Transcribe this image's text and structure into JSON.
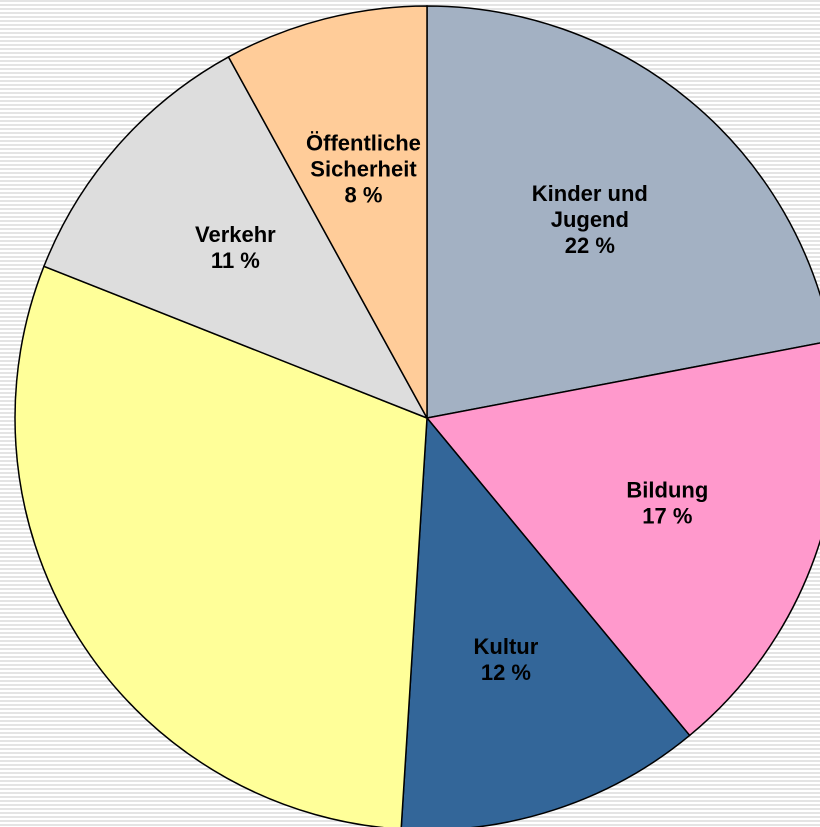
{
  "chart_data": {
    "type": "pie",
    "categories": [
      "Kinder und Jugend",
      "Bildung",
      "Kultur",
      null,
      "Verkehr",
      "Öffentliche Sicherheit"
    ],
    "values": [
      22,
      17,
      12,
      30,
      11,
      8
    ],
    "value_labels": [
      "22 %",
      "17 %",
      "12 %",
      null,
      "11 %",
      "8 %"
    ],
    "colors": [
      "#a3b1c3",
      "#ff99cc",
      "#336699",
      "#ffff99",
      "#dddddd",
      "#ffcc99"
    ]
  }
}
